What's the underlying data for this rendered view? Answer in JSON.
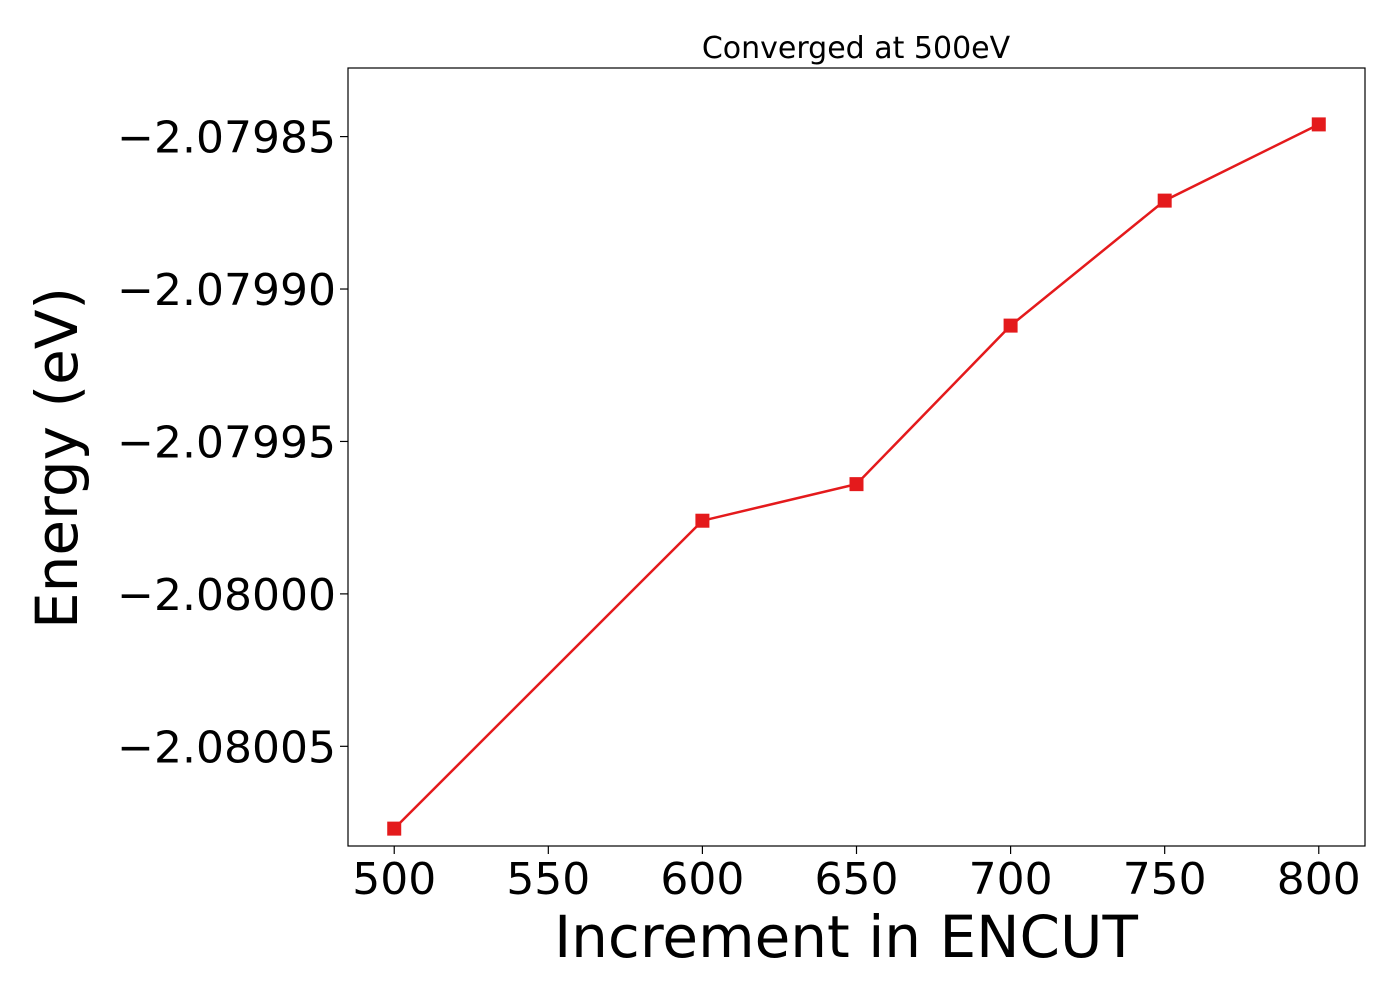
{
  "chart_data": {
    "type": "line",
    "title": "Converged at 500eV",
    "xlabel": "Increment in ENCUT",
    "ylabel": "Energy (eV)",
    "x": [
      500,
      600,
      650,
      700,
      750,
      800
    ],
    "series": [
      {
        "values": [
          -2.080077,
          -2.079976,
          -2.079964,
          -2.079912,
          -2.079871,
          -2.079846
        ],
        "color": "#e41a1c",
        "marker": "square"
      }
    ],
    "xticks": [
      500,
      550,
      600,
      650,
      700,
      750,
      800
    ],
    "xtick_labels": [
      "500",
      "550",
      "600",
      "650",
      "700",
      "750",
      "800"
    ],
    "yticks": [
      -2.07985,
      -2.0799,
      -2.07995,
      -2.08,
      -2.08005
    ],
    "ytick_labels": [
      "−2.07985",
      "−2.07990",
      "−2.07995",
      "−2.08000",
      "−2.08005"
    ],
    "xlim": [
      485,
      815
    ],
    "ylim": [
      -2.0800827,
      -2.0798275
    ],
    "grid": false,
    "legend": "none"
  }
}
